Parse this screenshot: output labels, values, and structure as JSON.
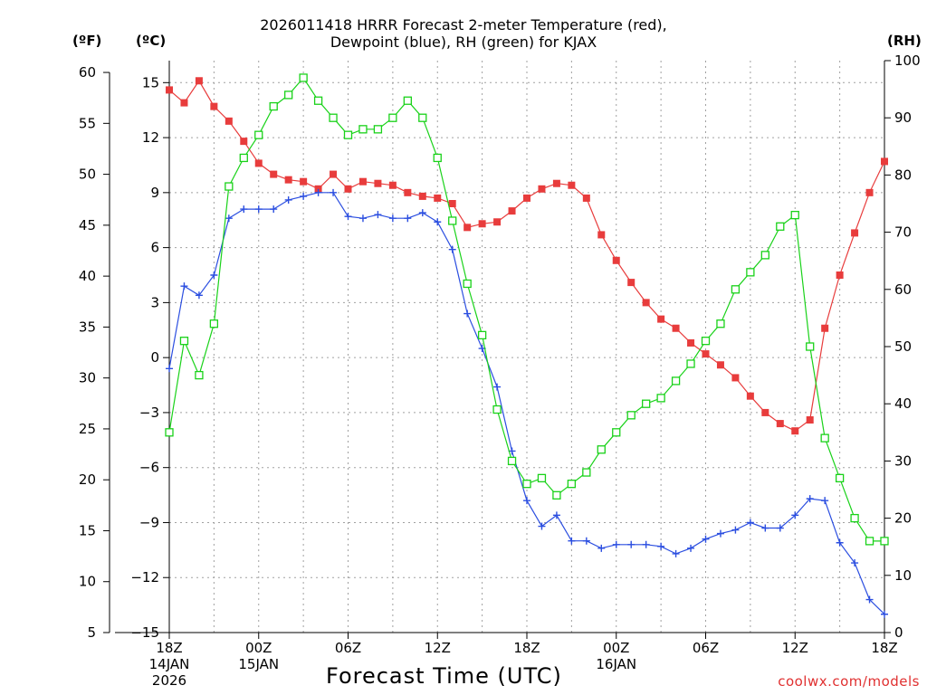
{
  "header": {
    "title_line1": "2026011418 HRRR Forecast 2-meter Temperature (red),",
    "title_line2": "Dewpoint (blue), RH (green) for KJAX"
  },
  "units": {
    "fahrenheit": "(ºF)",
    "celsius": "(ºC)",
    "rh": "(RH)"
  },
  "footer": {
    "x_title": "Forecast Time (UTC)",
    "credit": "coolwx.com/models"
  },
  "colors": {
    "temperature": "#e83c3c",
    "dewpoint": "#2b4ee0",
    "rh": "#19d219",
    "grid": "#a0a0a0"
  },
  "chart_data": {
    "type": "line",
    "title": "2026011418 HRRR Forecast 2-meter Temperature (red), Dewpoint (blue), RH (green) for KJAX",
    "xlabel": "Forecast Time (UTC)",
    "x_hours": [
      0,
      1,
      2,
      3,
      4,
      5,
      6,
      7,
      8,
      9,
      10,
      11,
      12,
      13,
      14,
      15,
      16,
      17,
      18,
      19,
      20,
      21,
      22,
      23,
      24,
      25,
      26,
      27,
      28,
      29,
      30,
      31,
      32,
      33,
      34,
      35,
      36,
      37,
      38,
      39,
      40,
      41,
      42,
      43,
      44,
      45,
      46,
      47,
      48
    ],
    "x_ticks": [
      {
        "hour": 0,
        "label": "18Z",
        "date": "14JAN",
        "year": "2026"
      },
      {
        "hour": 6,
        "label": "00Z",
        "date": "15JAN",
        "year": ""
      },
      {
        "hour": 12,
        "label": "06Z",
        "date": "",
        "year": ""
      },
      {
        "hour": 18,
        "label": "12Z",
        "date": "",
        "year": ""
      },
      {
        "hour": 24,
        "label": "18Z",
        "date": "",
        "year": ""
      },
      {
        "hour": 30,
        "label": "00Z",
        "date": "16JAN",
        "year": ""
      },
      {
        "hour": 36,
        "label": "06Z",
        "date": "",
        "year": ""
      },
      {
        "hour": 42,
        "label": "12Z",
        "date": "",
        "year": ""
      },
      {
        "hour": 48,
        "label": "18Z",
        "date": "",
        "year": ""
      }
    ],
    "left_axis_f": {
      "label": "(ºF)",
      "ticks": [
        5,
        10,
        15,
        20,
        25,
        30,
        35,
        40,
        45,
        50,
        55,
        60
      ],
      "tick_labels": [
        "5",
        "10",
        "15",
        "20",
        "25",
        "30",
        "35",
        "40",
        "45",
        "50",
        "55",
        "60"
      ]
    },
    "celsius_axis": {
      "label": "(ºC)",
      "ylim": [
        -15,
        16.2
      ],
      "ticks": [
        -15,
        -12,
        -9,
        -6,
        -3,
        0,
        3,
        6,
        9,
        12,
        15
      ],
      "tick_labels": [
        "−15",
        "−12",
        "−9",
        "−6",
        "−3",
        "0",
        "3",
        "6",
        "9",
        "12",
        "15"
      ]
    },
    "rh_axis": {
      "label": "(RH)",
      "ylim": [
        0,
        100
      ],
      "ticks": [
        0,
        10,
        20,
        30,
        40,
        50,
        60,
        70,
        80,
        90,
        100
      ],
      "tick_labels": [
        "0",
        "10",
        "20",
        "30",
        "40",
        "50",
        "60",
        "70",
        "80",
        "90",
        "100"
      ]
    },
    "series": [
      {
        "name": "Temperature",
        "unit": "C",
        "color": "#e83c3c",
        "marker": "filled-square",
        "values": [
          14.6,
          13.9,
          15.1,
          13.7,
          12.9,
          11.8,
          10.6,
          10.0,
          9.7,
          9.6,
          9.2,
          10.0,
          9.2,
          9.6,
          9.5,
          9.4,
          9.0,
          8.8,
          8.7,
          8.4,
          7.1,
          7.3,
          7.4,
          8.0,
          8.7,
          9.2,
          9.5,
          9.4,
          8.7,
          6.7,
          5.3,
          4.1,
          3.0,
          2.1,
          1.6,
          0.8,
          0.2,
          -0.4,
          -1.1,
          -2.1,
          -3.0,
          -3.6,
          -4.0,
          -3.4,
          1.6,
          4.5,
          6.8,
          9.0,
          10.7
        ]
      },
      {
        "name": "Dewpoint",
        "unit": "C",
        "color": "#2b4ee0",
        "marker": "plus",
        "values": [
          -0.6,
          3.9,
          3.4,
          4.5,
          7.6,
          8.1,
          8.1,
          8.1,
          8.6,
          8.8,
          9.0,
          9.0,
          7.7,
          7.6,
          7.8,
          7.6,
          7.6,
          7.9,
          7.4,
          5.9,
          2.4,
          0.5,
          -1.6,
          -5.1,
          -7.8,
          -9.2,
          -8.6,
          -10.0,
          -10.0,
          -10.4,
          -10.2,
          -10.2,
          -10.2,
          -10.3,
          -10.7,
          -10.4,
          -9.9,
          -9.6,
          -9.4,
          -9.0,
          -9.3,
          -9.3,
          -8.6,
          -7.7,
          -7.8,
          -10.1,
          -11.2,
          -13.2,
          -14.0
        ]
      },
      {
        "name": "RH",
        "unit": "%",
        "color": "#19d219",
        "marker": "open-square",
        "values": [
          35,
          51,
          45,
          54,
          78,
          83,
          87,
          92,
          94,
          97,
          93,
          90,
          87,
          88,
          88,
          90,
          93,
          90,
          83,
          72,
          61,
          52,
          39,
          30,
          26,
          27,
          24,
          26,
          28,
          32,
          35,
          38,
          40,
          41,
          44,
          47,
          51,
          54,
          60,
          63,
          66,
          71,
          73,
          50,
          34,
          27,
          20,
          16,
          16
        ]
      }
    ]
  }
}
